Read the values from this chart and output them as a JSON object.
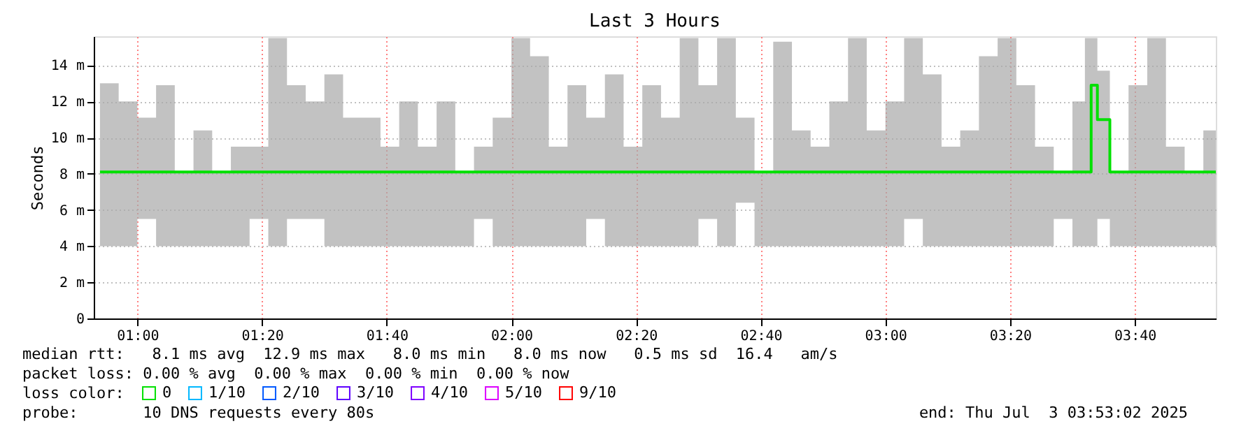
{
  "chart_data": {
    "type": "step",
    "title": "Last 3 Hours",
    "ylabel": "Seconds",
    "x": [
      "2025-07-03T00:54",
      "2025-07-03T00:57",
      "2025-07-03T01:00",
      "2025-07-03T01:03",
      "2025-07-03T01:06",
      "2025-07-03T01:09",
      "2025-07-03T01:12",
      "2025-07-03T01:15",
      "2025-07-03T01:18",
      "2025-07-03T01:21",
      "2025-07-03T01:24",
      "2025-07-03T01:27",
      "2025-07-03T01:30",
      "2025-07-03T01:33",
      "2025-07-03T01:36",
      "2025-07-03T01:39",
      "2025-07-03T01:42",
      "2025-07-03T01:45",
      "2025-07-03T01:48",
      "2025-07-03T01:51",
      "2025-07-03T01:54",
      "2025-07-03T01:57",
      "2025-07-03T02:00",
      "2025-07-03T02:03",
      "2025-07-03T02:06",
      "2025-07-03T02:09",
      "2025-07-03T02:12",
      "2025-07-03T02:15",
      "2025-07-03T02:18",
      "2025-07-03T02:21",
      "2025-07-03T02:24",
      "2025-07-03T02:27",
      "2025-07-03T02:30",
      "2025-07-03T02:33",
      "2025-07-03T02:36",
      "2025-07-03T02:39",
      "2025-07-03T02:42",
      "2025-07-03T02:45",
      "2025-07-03T02:48",
      "2025-07-03T02:51",
      "2025-07-03T02:54",
      "2025-07-03T02:57",
      "2025-07-03T03:00",
      "2025-07-03T03:03",
      "2025-07-03T03:06",
      "2025-07-03T03:09",
      "2025-07-03T03:12",
      "2025-07-03T03:15",
      "2025-07-03T03:18",
      "2025-07-03T03:21",
      "2025-07-03T03:24",
      "2025-07-03T03:27",
      "2025-07-03T03:30",
      "2025-07-03T03:32",
      "2025-07-03T03:33",
      "2025-07-03T03:34",
      "2025-07-03T03:36",
      "2025-07-03T03:39",
      "2025-07-03T03:42",
      "2025-07-03T03:45",
      "2025-07-03T03:48",
      "2025-07-03T03:51",
      "2025-07-03T03:53"
    ],
    "series": [
      {
        "name": "0",
        "color": "#00e000",
        "values": [
          8.1,
          8.1,
          8.1,
          8.1,
          8.1,
          8.1,
          8.1,
          8.1,
          8.1,
          8.1,
          8.1,
          8.1,
          8.1,
          8.1,
          8.1,
          8.1,
          8.1,
          8.1,
          8.1,
          8.1,
          8.1,
          8.1,
          8.1,
          8.1,
          8.1,
          8.1,
          8.1,
          8.1,
          8.1,
          8.1,
          8.1,
          8.1,
          8.1,
          8.1,
          8.1,
          8.1,
          8.1,
          8.1,
          8.1,
          8.1,
          8.1,
          8.1,
          8.1,
          8.1,
          8.1,
          8.1,
          8.1,
          8.1,
          8.1,
          8.1,
          8.1,
          8.1,
          8.1,
          8.1,
          12.9,
          11.0,
          8.1,
          8.1,
          8.1,
          8.1,
          8.1,
          8.1,
          8.1
        ],
        "lower": [
          4.0,
          4.0,
          5.5,
          4.0,
          4.0,
          4.0,
          4.0,
          4.0,
          5.5,
          4.0,
          5.5,
          5.5,
          4.0,
          4.0,
          4.0,
          4.0,
          4.0,
          4.0,
          4.0,
          4.0,
          5.5,
          4.0,
          4.0,
          4.0,
          4.0,
          4.0,
          5.5,
          4.0,
          4.0,
          4.0,
          4.0,
          4.0,
          5.5,
          4.0,
          6.4,
          4.0,
          4.0,
          4.0,
          4.0,
          4.0,
          4.0,
          4.0,
          4.0,
          5.5,
          4.0,
          4.0,
          4.0,
          4.0,
          4.0,
          4.0,
          4.0,
          5.5,
          4.0,
          4.0,
          4.0,
          5.5,
          4.0,
          4.0,
          4.0,
          4.0,
          4.0,
          4.0,
          4.0
        ],
        "upper": [
          13.0,
          12.0,
          11.1,
          12.9,
          8.1,
          10.4,
          8.1,
          9.5,
          9.5,
          15.5,
          12.9,
          12.0,
          13.5,
          11.1,
          11.1,
          9.5,
          12.0,
          9.5,
          12.0,
          8.1,
          9.5,
          11.1,
          15.5,
          14.5,
          9.5,
          12.9,
          11.1,
          13.5,
          9.5,
          12.9,
          11.1,
          15.5,
          12.9,
          15.5,
          11.1,
          8.1,
          15.3,
          10.4,
          9.5,
          12.0,
          15.5,
          10.4,
          12.0,
          15.5,
          13.5,
          9.5,
          10.4,
          14.5,
          15.5,
          12.9,
          9.5,
          8.1,
          12.0,
          15.5,
          15.5,
          13.7,
          8.1,
          12.9,
          15.5,
          9.5,
          8.1,
          10.4,
          10.4
        ]
      },
      {
        "name": "1/10",
        "color": "#00b8ff",
        "values": [
          null,
          null,
          null,
          null,
          null,
          null,
          null,
          null,
          null,
          null,
          null,
          null,
          null,
          null,
          null,
          null,
          null,
          null,
          null,
          null,
          null,
          null,
          null,
          null,
          null,
          null,
          null,
          null,
          null,
          null,
          null,
          null,
          null,
          null,
          null,
          null,
          null,
          null,
          null,
          null,
          null,
          null,
          null,
          null,
          null,
          null,
          null,
          null,
          null,
          null,
          null,
          null,
          null,
          null,
          null,
          null,
          null,
          null,
          null,
          null,
          null,
          null,
          null
        ]
      },
      {
        "name": "2/10",
        "color": "#0059ff",
        "values": [
          null,
          null,
          null,
          null,
          null,
          null,
          null,
          null,
          null,
          null,
          null,
          null,
          null,
          null,
          null,
          null,
          null,
          null,
          null,
          null,
          null,
          null,
          null,
          null,
          null,
          null,
          null,
          null,
          null,
          null,
          null,
          null,
          null,
          null,
          null,
          null,
          null,
          null,
          null,
          null,
          null,
          null,
          null,
          null,
          null,
          null,
          null,
          null,
          null,
          null,
          null,
          null,
          null,
          null,
          null,
          null,
          null,
          null,
          null,
          null,
          null,
          null,
          null
        ]
      },
      {
        "name": "3/10",
        "color": "#5e00ff",
        "values": [
          null,
          null,
          null,
          null,
          null,
          null,
          null,
          null,
          null,
          null,
          null,
          null,
          null,
          null,
          null,
          null,
          null,
          null,
          null,
          null,
          null,
          null,
          null,
          null,
          null,
          null,
          null,
          null,
          null,
          null,
          null,
          null,
          null,
          null,
          null,
          null,
          null,
          null,
          null,
          null,
          null,
          null,
          null,
          null,
          null,
          null,
          null,
          null,
          null,
          null,
          null,
          null,
          null,
          null,
          null,
          null,
          null,
          null,
          null,
          null,
          null,
          null,
          null
        ]
      },
      {
        "name": "4/10",
        "color": "#7e00ff",
        "values": [
          null,
          null,
          null,
          null,
          null,
          null,
          null,
          null,
          null,
          null,
          null,
          null,
          null,
          null,
          null,
          null,
          null,
          null,
          null,
          null,
          null,
          null,
          null,
          null,
          null,
          null,
          null,
          null,
          null,
          null,
          null,
          null,
          null,
          null,
          null,
          null,
          null,
          null,
          null,
          null,
          null,
          null,
          null,
          null,
          null,
          null,
          null,
          null,
          null,
          null,
          null,
          null,
          null,
          null,
          null,
          null,
          null,
          null,
          null,
          null,
          null,
          null,
          null
        ]
      },
      {
        "name": "5/10",
        "color": "#dd00ff",
        "values": [
          null,
          null,
          null,
          null,
          null,
          null,
          null,
          null,
          null,
          null,
          null,
          null,
          null,
          null,
          null,
          null,
          null,
          null,
          null,
          null,
          null,
          null,
          null,
          null,
          null,
          null,
          null,
          null,
          null,
          null,
          null,
          null,
          null,
          null,
          null,
          null,
          null,
          null,
          null,
          null,
          null,
          null,
          null,
          null,
          null,
          null,
          null,
          null,
          null,
          null,
          null,
          null,
          null,
          null,
          null,
          null,
          null,
          null,
          null,
          null,
          null,
          null,
          null
        ]
      },
      {
        "name": "9/10",
        "color": "#ff0000",
        "values": [
          null,
          null,
          null,
          null,
          null,
          null,
          null,
          null,
          null,
          null,
          null,
          null,
          null,
          null,
          null,
          null,
          null,
          null,
          null,
          null,
          null,
          null,
          null,
          null,
          null,
          null,
          null,
          null,
          null,
          null,
          null,
          null,
          null,
          null,
          null,
          null,
          null,
          null,
          null,
          null,
          null,
          null,
          null,
          null,
          null,
          null,
          null,
          null,
          null,
          null,
          null,
          null,
          null,
          null,
          null,
          null,
          null,
          null,
          null,
          null,
          null,
          null,
          null
        ]
      }
    ],
    "legend_title": "loss color:",
    "legend": "bottom left",
    "xlim": [
      "2025-07-03T00:53",
      "2025-07-03T03:53"
    ],
    "xticks": [
      {
        "value": "2025-07-03T01:00",
        "label": "01:00"
      },
      {
        "value": "2025-07-03T01:20",
        "label": "01:20"
      },
      {
        "value": "2025-07-03T01:40",
        "label": "01:40"
      },
      {
        "value": "2025-07-03T02:00",
        "label": "02:00"
      },
      {
        "value": "2025-07-03T02:20",
        "label": "02:20"
      },
      {
        "value": "2025-07-03T02:40",
        "label": "02:40"
      },
      {
        "value": "2025-07-03T03:00",
        "label": "03:00"
      },
      {
        "value": "2025-07-03T03:20",
        "label": "03:20"
      },
      {
        "value": "2025-07-03T03:40",
        "label": "03:40"
      }
    ],
    "ylim": [
      0,
      15.6
    ],
    "yticks": [
      0,
      {
        "value": 2,
        "label": "2 m"
      },
      {
        "value": 4,
        "label": "4 m"
      },
      {
        "value": 6,
        "label": "6 m"
      },
      {
        "value": 8,
        "label": "8 m"
      },
      {
        "value": 10,
        "label": "10 m"
      },
      {
        "value": 12,
        "label": "12 m"
      },
      {
        "value": 14,
        "label": "14 m"
      }
    ],
    "grid": true,
    "line_style": "solid",
    "marker": "none",
    "annotations": [
      "median rtt:   8.1 ms avg  12.9 ms max   8.0 ms min   8.0 ms now   0.5 ms sd  16.4   am/s",
      "packet loss: 0.00 % avg  0.00 % max  0.00 % min  0.00 % now",
      "probe:       10 DNS requests every 80s",
      "end: Thu Jul  3 03:53:02 2025"
    ]
  }
}
